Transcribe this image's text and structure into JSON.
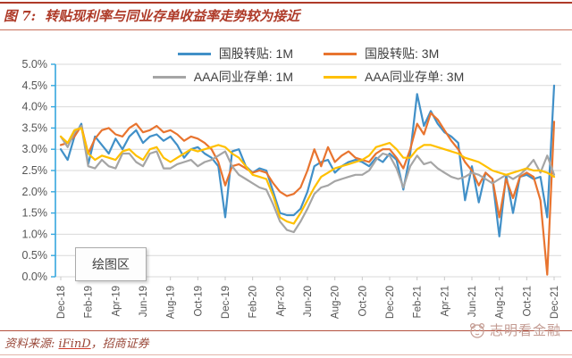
{
  "header": {
    "figure_label": "图 7:",
    "title": "转贴现利率与同业存单收益率走势较为接近"
  },
  "plot_area_tooltip": "绘图区",
  "footer": {
    "source_prefix": "资料来源: ",
    "source_link": "iFinD",
    "source_suffix": "，招商证券",
    "watermark": "志明看金融"
  },
  "colors": {
    "accent_red": "#AE3A28",
    "axis_blue": "#35A7DE",
    "gridline": "#D9D9D9",
    "tick_text": "#555555",
    "watermark": "#C39B92"
  },
  "chart_data": {
    "type": "line",
    "title": "转贴现利率与同业存单收益率走势较为接近",
    "xlabel": "",
    "ylabel": "",
    "ylim": [
      0,
      5
    ],
    "grid": true,
    "legend_position": "top",
    "x_start": "Dec-18",
    "x_step_months": 0.5,
    "x_tick_labels": [
      "Dec-18",
      "Feb-19",
      "Apr-19",
      "Jun-19",
      "Aug-19",
      "Oct-19",
      "Dec-19",
      "Feb-20",
      "Apr-20",
      "Jun-20",
      "Aug-20",
      "Oct-20",
      "Dec-20",
      "Feb-21",
      "Apr-21",
      "Jun-21",
      "Aug-21",
      "Oct-21",
      "Dec-21"
    ],
    "y_tick_labels": [
      "0.0%",
      "0.5%",
      "1.0%",
      "1.5%",
      "2.0%",
      "2.5%",
      "3.0%",
      "3.5%",
      "4.0%",
      "4.5%",
      "5.0%"
    ],
    "series": [
      {
        "name": "国股转贴: 1M",
        "color": "#4190C8",
        "values": [
          3.0,
          2.75,
          3.3,
          3.6,
          2.65,
          3.3,
          3.1,
          2.9,
          3.25,
          3.0,
          3.3,
          3.45,
          3.15,
          3.3,
          3.35,
          3.2,
          3.3,
          3.1,
          2.8,
          3.0,
          3.05,
          2.9,
          2.8,
          2.6,
          1.4,
          2.95,
          3.0,
          2.6,
          2.45,
          2.55,
          2.5,
          2.0,
          1.5,
          1.45,
          1.45,
          1.6,
          2.0,
          2.6,
          2.7,
          2.75,
          2.45,
          2.6,
          2.7,
          2.75,
          2.7,
          2.6,
          2.8,
          2.7,
          2.9,
          2.75,
          2.05,
          2.9,
          4.3,
          3.55,
          3.9,
          3.6,
          3.4,
          3.3,
          3.15,
          1.8,
          2.6,
          1.75,
          2.45,
          2.3,
          0.95,
          2.4,
          1.5,
          2.35,
          2.4,
          2.3,
          2.35,
          1.4,
          4.5
        ]
      },
      {
        "name": "国股转贴: 3M",
        "color": "#E8742F",
        "values": [
          3.1,
          3.15,
          3.3,
          3.55,
          2.9,
          3.25,
          3.45,
          3.5,
          3.35,
          3.3,
          3.5,
          3.6,
          3.4,
          3.45,
          3.55,
          3.4,
          3.45,
          3.35,
          3.2,
          3.3,
          3.25,
          3.15,
          3.0,
          2.7,
          2.15,
          2.6,
          2.65,
          2.55,
          2.45,
          2.5,
          2.45,
          2.2,
          2.0,
          1.9,
          1.95,
          2.1,
          2.5,
          3.0,
          2.6,
          3.05,
          2.7,
          2.85,
          2.95,
          2.8,
          2.75,
          2.7,
          2.9,
          3.0,
          3.0,
          2.8,
          2.55,
          3.0,
          3.6,
          3.35,
          3.85,
          3.7,
          3.45,
          3.2,
          3.0,
          2.7,
          2.5,
          2.15,
          2.45,
          2.3,
          1.4,
          2.3,
          1.85,
          2.35,
          2.45,
          2.35,
          1.8,
          0.05,
          3.65
        ]
      },
      {
        "name": "AAA同业存单: 1M",
        "color": "#A5A5A5",
        "values": [
          3.3,
          3.05,
          3.4,
          3.55,
          2.6,
          2.55,
          2.75,
          2.6,
          2.55,
          2.9,
          2.9,
          2.7,
          2.6,
          2.9,
          2.95,
          2.55,
          2.55,
          2.65,
          2.7,
          2.75,
          2.6,
          2.7,
          2.75,
          2.85,
          2.95,
          2.6,
          2.4,
          2.3,
          2.2,
          2.1,
          2.05,
          1.7,
          1.3,
          1.1,
          1.05,
          1.3,
          1.6,
          1.95,
          2.1,
          2.15,
          2.25,
          2.3,
          2.35,
          2.4,
          2.4,
          2.5,
          2.75,
          2.9,
          2.85,
          2.55,
          2.1,
          2.6,
          2.85,
          2.65,
          2.7,
          2.55,
          2.45,
          2.35,
          2.3,
          2.35,
          2.45,
          2.4,
          2.3,
          2.2,
          2.3,
          2.4,
          2.3,
          2.4,
          2.55,
          2.75,
          2.45,
          2.85,
          2.4
        ]
      },
      {
        "name": "AAA同业存单: 3M",
        "color": "#FFC000",
        "values": [
          3.3,
          3.15,
          3.45,
          3.5,
          2.9,
          2.75,
          2.85,
          2.8,
          2.75,
          2.95,
          3.0,
          2.85,
          2.75,
          3.0,
          3.05,
          2.8,
          2.7,
          2.8,
          2.9,
          3.0,
          2.95,
          3.0,
          3.05,
          3.1,
          3.05,
          2.9,
          2.8,
          2.6,
          2.4,
          2.35,
          2.3,
          1.9,
          1.4,
          1.3,
          1.25,
          1.5,
          1.8,
          2.1,
          2.35,
          2.45,
          2.55,
          2.6,
          2.65,
          2.7,
          2.75,
          2.85,
          3.05,
          3.1,
          3.15,
          3.0,
          2.8,
          2.8,
          3.0,
          3.1,
          3.1,
          3.05,
          3.0,
          2.95,
          2.9,
          2.8,
          2.75,
          2.7,
          2.6,
          2.5,
          2.45,
          2.4,
          2.45,
          2.5,
          2.55,
          2.5,
          2.5,
          2.45,
          2.35
        ]
      }
    ]
  }
}
